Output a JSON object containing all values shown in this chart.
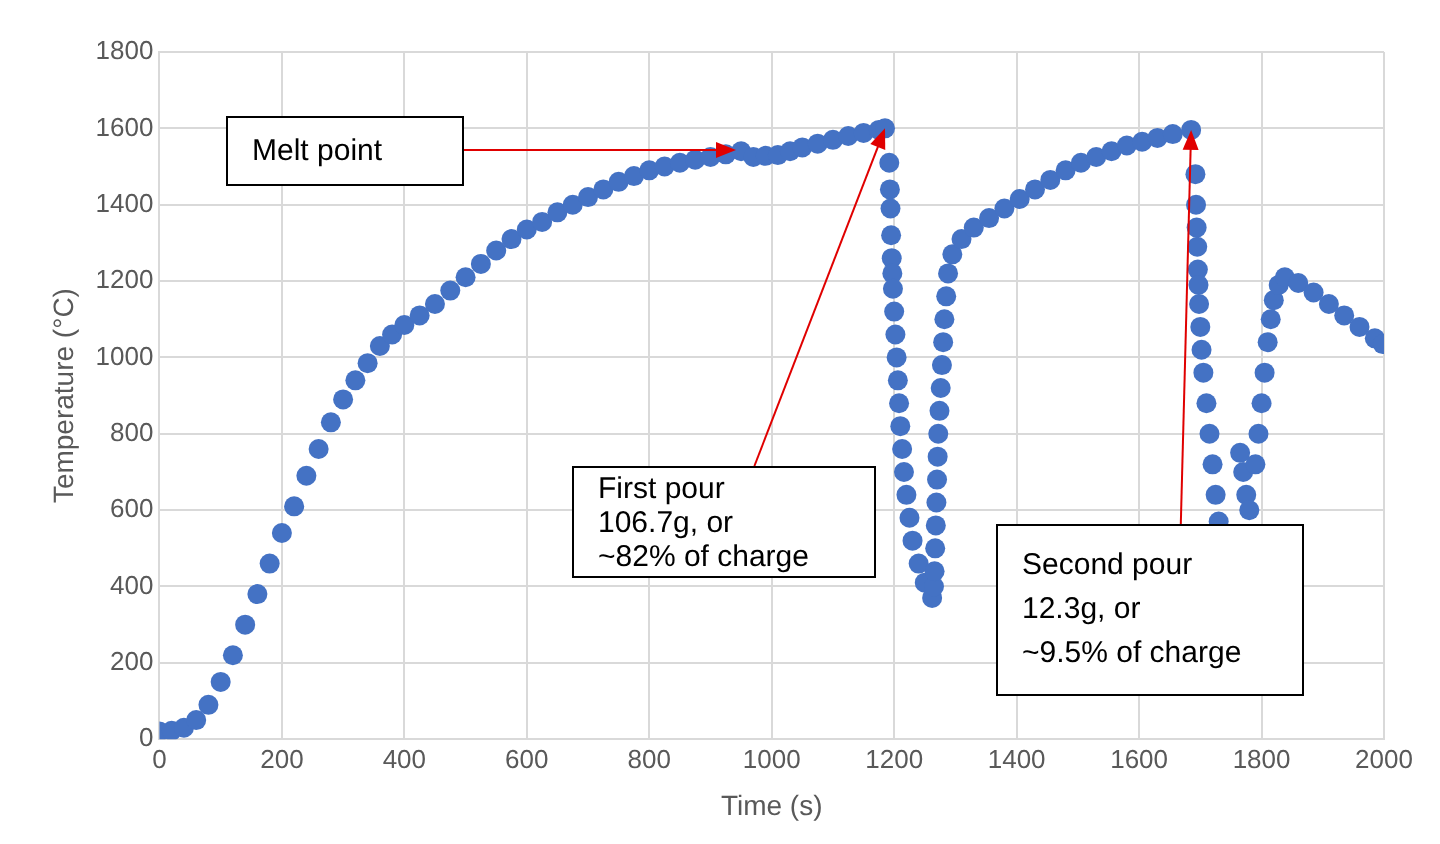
{
  "chart_data": {
    "type": "scatter",
    "xlabel": "Time (s)",
    "ylabel": "Temperature (°C)",
    "xlim": [
      0,
      2000
    ],
    "xticks": [
      0,
      200,
      400,
      600,
      800,
      1000,
      1200,
      1400,
      1600,
      1800,
      2000
    ],
    "ylim": [
      0,
      1800
    ],
    "yticks": [
      0,
      200,
      400,
      600,
      800,
      1000,
      1200,
      1400,
      1600,
      1800
    ],
    "grid": true,
    "marker": "circle",
    "annotations": [
      "Melt point",
      {
        "text": "First pour\n106.7g, or\n~82% of charge",
        "x": 1185,
        "y": 1600
      },
      {
        "text": "Second pour\n12.3g, or\n~9.5% of charge",
        "x": 1685,
        "y": 1596
      }
    ],
    "series": [
      {
        "color": "#4472c4",
        "x": [
          0,
          20,
          40,
          60,
          80,
          100,
          120,
          140,
          160,
          180,
          200,
          220,
          240,
          260,
          280,
          300,
          320,
          340,
          360,
          380,
          400,
          425,
          450,
          475,
          500,
          525,
          550,
          575,
          600,
          625,
          650,
          675,
          700,
          725,
          750,
          775,
          800,
          825,
          850,
          875,
          900,
          925,
          950,
          970,
          990,
          1010,
          1030,
          1050,
          1075,
          1100,
          1125,
          1150,
          1175,
          1185,
          1192,
          1193,
          1194,
          1195,
          1196,
          1197,
          1198,
          1200,
          1202,
          1204,
          1206,
          1208,
          1210,
          1213,
          1216,
          1220,
          1225,
          1230,
          1240,
          1250,
          1262,
          1265,
          1266,
          1267,
          1268,
          1269,
          1270,
          1271,
          1272,
          1274,
          1276,
          1278,
          1280,
          1282,
          1285,
          1288,
          1295,
          1310,
          1330,
          1355,
          1380,
          1405,
          1430,
          1455,
          1480,
          1505,
          1530,
          1555,
          1580,
          1605,
          1630,
          1655,
          1685,
          1692,
          1693,
          1694,
          1695,
          1696,
          1697,
          1698,
          1700,
          1702,
          1705,
          1710,
          1715,
          1720,
          1725,
          1730,
          1765,
          1770,
          1775,
          1780,
          1790,
          1795,
          1800,
          1805,
          1810,
          1815,
          1820,
          1828,
          1838,
          1860,
          1885,
          1910,
          1935,
          1960,
          1985,
          1998
        ],
        "values": [
          20,
          22,
          30,
          50,
          90,
          150,
          220,
          300,
          380,
          460,
          540,
          610,
          690,
          760,
          830,
          890,
          940,
          985,
          1030,
          1060,
          1085,
          1110,
          1140,
          1175,
          1210,
          1245,
          1280,
          1310,
          1335,
          1355,
          1380,
          1400,
          1420,
          1440,
          1460,
          1475,
          1490,
          1500,
          1510,
          1518,
          1525,
          1532,
          1540,
          1525,
          1528,
          1530,
          1540,
          1550,
          1560,
          1570,
          1580,
          1588,
          1596,
          1600,
          1510,
          1440,
          1390,
          1320,
          1260,
          1220,
          1180,
          1120,
          1060,
          1000,
          940,
          880,
          820,
          760,
          700,
          640,
          580,
          520,
          460,
          410,
          370,
          400,
          440,
          500,
          560,
          620,
          680,
          740,
          800,
          860,
          920,
          980,
          1040,
          1100,
          1160,
          1220,
          1270,
          1310,
          1340,
          1365,
          1390,
          1415,
          1440,
          1465,
          1490,
          1510,
          1525,
          1540,
          1555,
          1565,
          1575,
          1585,
          1596,
          1480,
          1400,
          1340,
          1290,
          1230,
          1190,
          1140,
          1080,
          1020,
          960,
          880,
          800,
          720,
          640,
          570,
          750,
          700,
          640,
          600,
          720,
          800,
          880,
          960,
          1040,
          1100,
          1150,
          1190,
          1210,
          1195,
          1170,
          1140,
          1110,
          1080,
          1050,
          1035
        ]
      }
    ]
  }
}
